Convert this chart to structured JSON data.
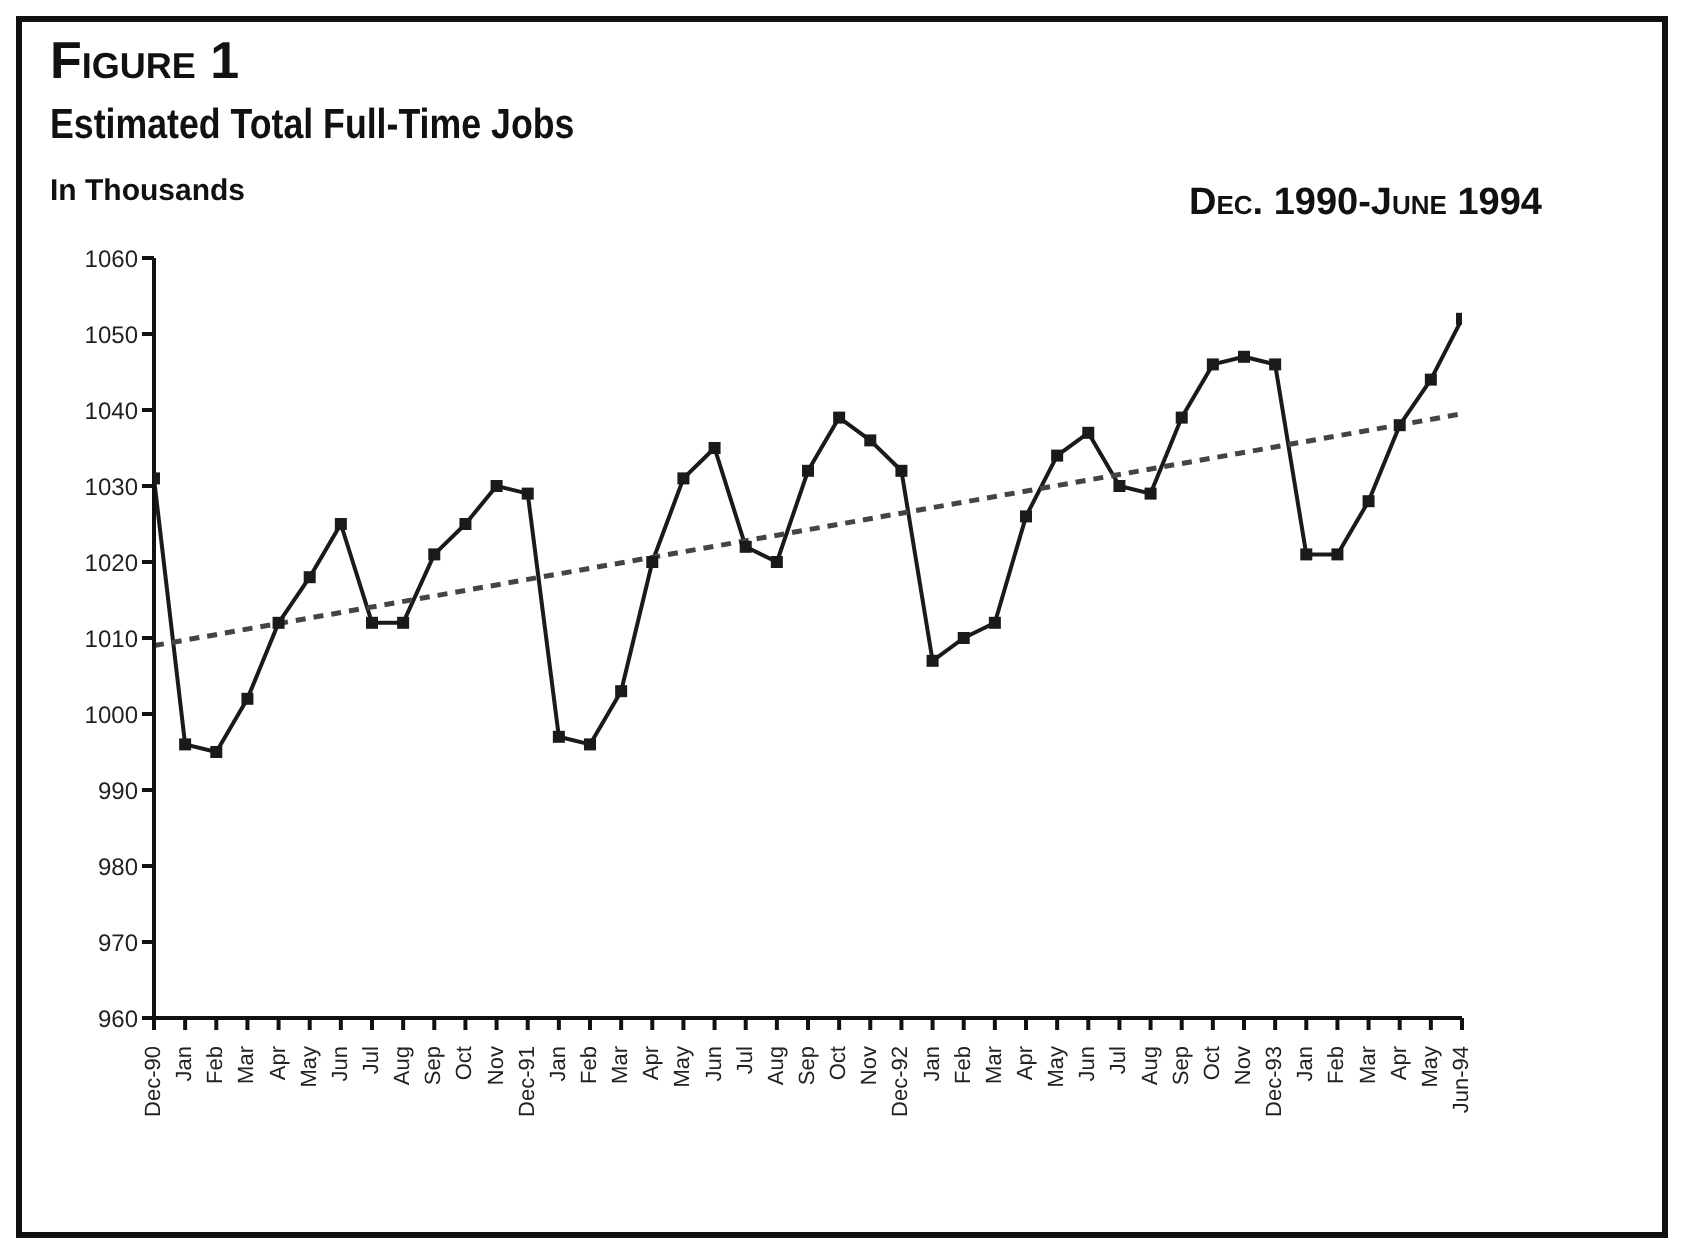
{
  "chart_data": {
    "type": "line",
    "title": "Figure 1",
    "subtitle": "Estimated Total Full-Time Jobs",
    "ylabel": "In Thousands",
    "annotations": [
      "Dec. 1990-June 1994"
    ],
    "categories": [
      "Dec-90",
      "Jan",
      "Feb",
      "Mar",
      "Apr",
      "May",
      "Jun",
      "Jul",
      "Aug",
      "Sep",
      "Oct",
      "Nov",
      "Dec-91",
      "Jan",
      "Feb",
      "Mar",
      "Apr",
      "May",
      "Jun",
      "Jul",
      "Aug",
      "Sep",
      "Oct",
      "Nov",
      "Dec-92",
      "Jan",
      "Feb",
      "Mar",
      "Apr",
      "May",
      "Jun",
      "Jul",
      "Aug",
      "Sep",
      "Oct",
      "Nov",
      "Dec-93",
      "Jan",
      "Feb",
      "Mar",
      "Apr",
      "May",
      "Jun-94"
    ],
    "series": [
      {
        "color": "#1a1a1a",
        "marker": "square",
        "line_style": "solid",
        "values": [
          1031,
          996,
          995,
          1002,
          1012,
          1018,
          1025,
          1012,
          1012,
          1021,
          1025,
          1030,
          1029,
          997,
          996,
          1003,
          1020,
          1031,
          1035,
          1022,
          1020,
          1032,
          1039,
          1036,
          1032,
          1007,
          1010,
          1012,
          1026,
          1034,
          1037,
          1030,
          1029,
          1039,
          1046,
          1047,
          1046,
          1021,
          1021,
          1028,
          1038,
          1044,
          1052
        ]
      },
      {
        "type": "line",
        "color": "#444444",
        "marker": "none",
        "line_style": "dashed",
        "x": [
          "Dec-90",
          "Jun-94"
        ],
        "values": [
          1009,
          1039.5
        ]
      }
    ],
    "ylim": [
      960,
      1060
    ],
    "yticks": [
      960,
      970,
      980,
      990,
      1000,
      1010,
      1020,
      1030,
      1040,
      1050,
      1060
    ]
  }
}
